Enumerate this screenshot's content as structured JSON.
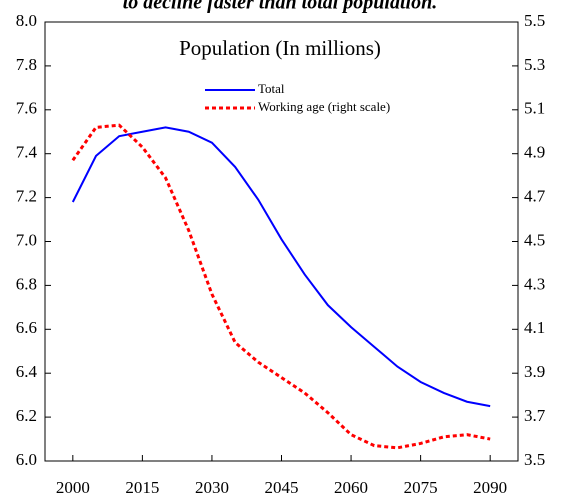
{
  "chart_data": {
    "type": "line",
    "title": "to decline faster than total population.",
    "annotation": "Population (In millions)",
    "x": [
      2000,
      2005,
      2010,
      2015,
      2020,
      2025,
      2030,
      2035,
      2040,
      2045,
      2050,
      2055,
      2060,
      2065,
      2070,
      2075,
      2080,
      2085,
      2090
    ],
    "series": [
      {
        "name": "Total",
        "color": "#0000ff",
        "values": [
          7.18,
          7.39,
          7.48,
          7.5,
          7.52,
          7.5,
          7.45,
          7.34,
          7.19,
          7.01,
          6.85,
          6.71,
          6.61,
          6.52,
          6.43,
          6.36,
          6.31,
          6.27,
          6.25
        ]
      },
      {
        "name": "Working age (right scale)",
        "color": "#ff0000",
        "axis": "y2",
        "dashed": true,
        "values": [
          4.87,
          5.02,
          5.03,
          4.93,
          4.79,
          4.55,
          4.26,
          4.04,
          3.95,
          3.88,
          3.81,
          3.72,
          3.62,
          3.57,
          3.56,
          3.58,
          3.61,
          3.62,
          3.6
        ]
      }
    ],
    "xlim": [
      1994,
      2096
    ],
    "xticks": [
      2000,
      2015,
      2030,
      2045,
      2060,
      2075,
      2090
    ],
    "ylim": [
      6,
      8
    ],
    "yticks": [
      {
        "value": 6,
        "label": "6.0"
      },
      6.2,
      6.4,
      6.6,
      6.8,
      {
        "value": 7,
        "label": "7.0"
      },
      7.2,
      7.4,
      7.6,
      7.8,
      {
        "value": 8,
        "label": "8.0"
      }
    ],
    "y2lim": [
      3.5,
      5.5
    ],
    "y2ticks": [
      3.5,
      3.7,
      3.9,
      4.1,
      4.3,
      4.5,
      4.7,
      4.9,
      5.1,
      5.3,
      5.5
    ],
    "grid": false
  }
}
